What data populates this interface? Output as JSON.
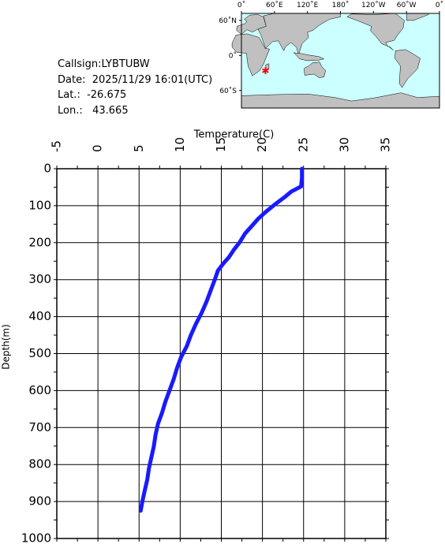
{
  "info": {
    "callsign": "Callsign:LYBTUBW",
    "date": "Date:  2025/11/29 16:01(UTC)",
    "lat": "Lat.:  -26.675",
    "lon": "Lon.:   43.665"
  },
  "map": {
    "lon_ticks": [
      "0˚",
      "60˚E",
      "120˚E",
      "180˚",
      "120˚W",
      "60˚W",
      "0˚"
    ],
    "lat_ticks": [
      "60˚N",
      "0˚",
      "60˚S"
    ],
    "marker": {
      "lat": -26.675,
      "lon": 43.665
    },
    "colors": {
      "ocean": "#ccffff",
      "land": "#c0c0c0",
      "marker": "#ff0000"
    }
  },
  "chart_data": {
    "type": "line",
    "title": "",
    "xlabel": "Temperature(C)",
    "ylabel": "Depth(m)",
    "xlim": [
      -5,
      35
    ],
    "ylim": [
      0,
      1000
    ],
    "y_inverted": true,
    "x_ticks": [
      -5,
      0,
      5,
      10,
      15,
      20,
      25,
      30,
      35
    ],
    "y_ticks": [
      0,
      100,
      200,
      300,
      400,
      500,
      600,
      700,
      800,
      900,
      1000
    ],
    "x_tick_labels": [
      "-5",
      "0",
      "5",
      "10",
      "15",
      "20",
      "25",
      "30",
      "35"
    ],
    "y_tick_labels": [
      "0",
      "100",
      "200",
      "300",
      "400",
      "500",
      "600",
      "700",
      "800",
      "900",
      "1000"
    ],
    "grid": true,
    "line_color": "#1a1aff",
    "series": [
      {
        "x": [
          24.8,
          24.8,
          24.7,
          23.5,
          22.8,
          21.6,
          20.5,
          19.5,
          18.7,
          17.9,
          17.2,
          16.5,
          15.9,
          15.3,
          14.6,
          14.2,
          13.7,
          13.2,
          12.6,
          11.9,
          11.3,
          10.8,
          10.1,
          9.6,
          9.2,
          8.7,
          8.2,
          7.8,
          7.3,
          7.0,
          6.8,
          6.5,
          6.2,
          6.0,
          5.7,
          5.4,
          5.2
        ],
        "y": [
          0,
          25,
          48,
          62,
          75,
          95,
          115,
          135,
          155,
          175,
          200,
          220,
          240,
          255,
          275,
          300,
          330,
          360,
          390,
          420,
          450,
          480,
          510,
          540,
          570,
          600,
          630,
          660,
          690,
          720,
          750,
          780,
          810,
          840,
          870,
          900,
          925
        ]
      }
    ]
  }
}
